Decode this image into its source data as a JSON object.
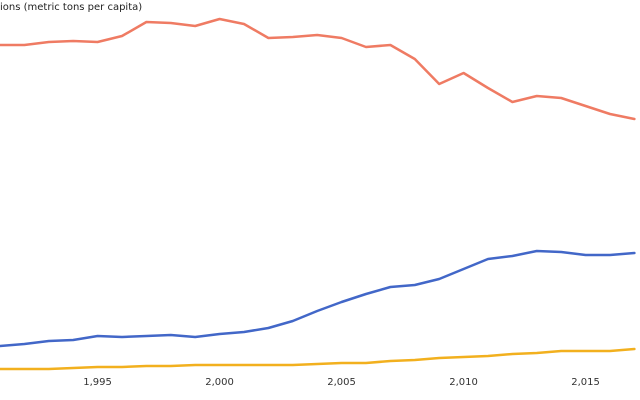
{
  "chart_data": {
    "type": "line",
    "title": "ions (metric tons per capita)",
    "x": [
      1991,
      1992,
      1993,
      1994,
      1995,
      1996,
      1997,
      1998,
      1999,
      2000,
      2001,
      2002,
      2003,
      2004,
      2005,
      2006,
      2007,
      2008,
      2009,
      2010,
      2011,
      2012,
      2013,
      2014,
      2015,
      2016,
      2017
    ],
    "series": [
      {
        "color": "#ef7b63",
        "values": [
          17.25,
          17.25,
          17.4,
          17.45,
          17.4,
          17.7,
          18.4,
          18.35,
          18.2,
          18.55,
          18.3,
          17.6,
          17.65,
          17.75,
          17.6,
          17.15,
          17.25,
          16.55,
          15.3,
          15.85,
          15.1,
          14.4,
          14.7,
          14.6,
          14.2,
          13.8,
          13.55
        ]
      },
      {
        "color": "#4267c8",
        "values": [
          2.2,
          2.3,
          2.45,
          2.5,
          2.7,
          2.65,
          2.7,
          2.75,
          2.65,
          2.8,
          2.9,
          3.1,
          3.45,
          3.95,
          4.4,
          4.8,
          5.15,
          5.25,
          5.55,
          6.05,
          6.55,
          6.7,
          6.95,
          6.9,
          6.75,
          6.75,
          6.85
        ]
      },
      {
        "color": "#f2b01e",
        "values": [
          1.05,
          1.05,
          1.05,
          1.1,
          1.15,
          1.15,
          1.2,
          1.2,
          1.25,
          1.25,
          1.25,
          1.25,
          1.25,
          1.3,
          1.35,
          1.35,
          1.45,
          1.5,
          1.6,
          1.65,
          1.7,
          1.8,
          1.85,
          1.95,
          1.95,
          1.95,
          2.05
        ]
      }
    ],
    "xlim": [
      1991,
      2017.23
    ],
    "xticks": [
      {
        "value": 1995,
        "label": "1,995"
      },
      {
        "value": 2000,
        "label": "2,000"
      },
      {
        "value": 2005,
        "label": "2,005"
      },
      {
        "value": 2010,
        "label": "2,010"
      },
      {
        "value": 2015,
        "label": "2,015"
      }
    ],
    "ylim": [
      0,
      19.5
    ]
  }
}
